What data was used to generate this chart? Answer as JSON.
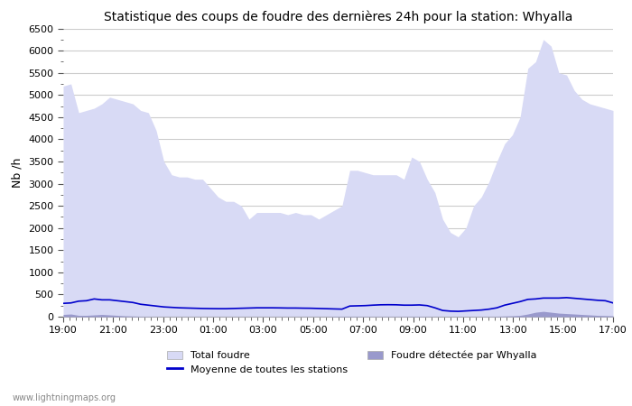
{
  "title": "Statistique des coups de foudre des dernières 24h pour la station: Whyalla",
  "ylabel": "Nb /h",
  "watermark": "www.lightningmaps.org",
  "ylim": [
    0,
    6500
  ],
  "yticks": [
    0,
    500,
    1000,
    1500,
    2000,
    2500,
    3000,
    3500,
    4000,
    4500,
    5000,
    5500,
    6000,
    6500
  ],
  "xtick_labels": [
    "19:00",
    "21:00",
    "23:00",
    "01:00",
    "03:00",
    "05:00",
    "07:00",
    "09:00",
    "11:00",
    "13:00",
    "15:00",
    "17:00"
  ],
  "bg_color": "#ffffff",
  "grid_color": "#cccccc",
  "fill_total_color": "#d8daf5",
  "fill_local_color": "#9999cc",
  "line_color": "#0000cc",
  "x": [
    0,
    1,
    2,
    3,
    4,
    5,
    6,
    7,
    8,
    9,
    10,
    11,
    12,
    13,
    14,
    15,
    16,
    17,
    18,
    19,
    20,
    21,
    22,
    23,
    24,
    25,
    26,
    27,
    28,
    29,
    30,
    31,
    32,
    33,
    34,
    35,
    36,
    37,
    38,
    39,
    40,
    41,
    42,
    43,
    44,
    45,
    46,
    47,
    48,
    49,
    50,
    51,
    52,
    53,
    54,
    55,
    56,
    57,
    58,
    59,
    60,
    61,
    62,
    63,
    64,
    65,
    66,
    67,
    68,
    69,
    70,
    71
  ],
  "total_foudre": [
    5200,
    5250,
    4600,
    4650,
    4700,
    4800,
    4950,
    4900,
    4850,
    4800,
    4650,
    4600,
    4200,
    3500,
    3200,
    3150,
    3150,
    3100,
    3100,
    2900,
    2700,
    2600,
    2600,
    2500,
    2200,
    2350,
    2350,
    2350,
    2350,
    2300,
    2350,
    2300,
    2300,
    2200,
    2300,
    2400,
    2500,
    3300,
    3300,
    3250,
    3200,
    3200,
    3200,
    3200,
    3100,
    3600,
    3500,
    3100,
    2800,
    2200,
    1900,
    1800,
    2000,
    2500,
    2700,
    3050,
    3500,
    3900,
    4100,
    4500,
    5600,
    5750,
    6250,
    6100,
    5500,
    5450,
    5100,
    4900,
    4800,
    4750,
    4700,
    4650
  ],
  "local_foudre": [
    50,
    60,
    30,
    30,
    40,
    50,
    40,
    30,
    20,
    15,
    10,
    8,
    5,
    5,
    5,
    5,
    5,
    5,
    5,
    5,
    5,
    5,
    5,
    5,
    5,
    5,
    5,
    5,
    5,
    5,
    5,
    5,
    5,
    5,
    5,
    10,
    10,
    10,
    10,
    8,
    8,
    8,
    8,
    8,
    8,
    10,
    10,
    8,
    5,
    3,
    3,
    3,
    5,
    5,
    5,
    8,
    10,
    15,
    20,
    30,
    60,
    100,
    120,
    100,
    80,
    70,
    60,
    50,
    40,
    30,
    25,
    20
  ],
  "avg_line": [
    300,
    310,
    350,
    360,
    400,
    380,
    380,
    360,
    340,
    320,
    280,
    260,
    240,
    220,
    210,
    200,
    195,
    190,
    185,
    182,
    180,
    180,
    185,
    190,
    195,
    200,
    200,
    200,
    198,
    195,
    195,
    192,
    190,
    185,
    180,
    175,
    170,
    240,
    245,
    250,
    260,
    268,
    270,
    268,
    260,
    260,
    265,
    250,
    200,
    140,
    125,
    120,
    130,
    140,
    150,
    170,
    200,
    260,
    300,
    340,
    390,
    400,
    420,
    420,
    420,
    430,
    415,
    400,
    385,
    370,
    360,
    310
  ]
}
